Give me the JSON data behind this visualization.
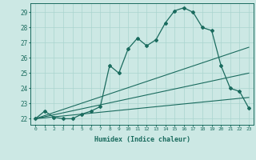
{
  "xlabel": "Humidex (Indice chaleur)",
  "ylabel": "",
  "bg_color": "#cce8e4",
  "line_color": "#1a6b5e",
  "grid_color": "#aad4cf",
  "xlim": [
    -0.5,
    23.5
  ],
  "ylim": [
    21.6,
    29.6
  ],
  "yticks": [
    22,
    23,
    24,
    25,
    26,
    27,
    28,
    29
  ],
  "xticks": [
    0,
    1,
    2,
    3,
    4,
    5,
    6,
    7,
    8,
    9,
    10,
    11,
    12,
    13,
    14,
    15,
    16,
    17,
    18,
    19,
    20,
    21,
    22,
    23
  ],
  "line1_x": [
    0,
    1,
    2,
    3,
    4,
    5,
    6,
    7,
    8,
    9,
    10,
    11,
    12,
    13,
    14,
    15,
    16,
    17,
    18,
    19,
    20,
    21,
    22,
    23
  ],
  "line1_y": [
    22.0,
    22.5,
    22.1,
    22.0,
    22.0,
    22.3,
    22.5,
    22.8,
    25.5,
    25.0,
    26.6,
    27.3,
    26.8,
    27.2,
    28.3,
    29.1,
    29.3,
    29.0,
    28.0,
    27.8,
    25.5,
    24.0,
    23.8,
    22.7
  ],
  "line2_x": [
    0,
    23
  ],
  "line2_y": [
    22.0,
    26.7
  ],
  "line3_x": [
    0,
    23
  ],
  "line3_y": [
    22.0,
    25.0
  ],
  "line4_x": [
    0,
    23
  ],
  "line4_y": [
    22.0,
    23.4
  ]
}
